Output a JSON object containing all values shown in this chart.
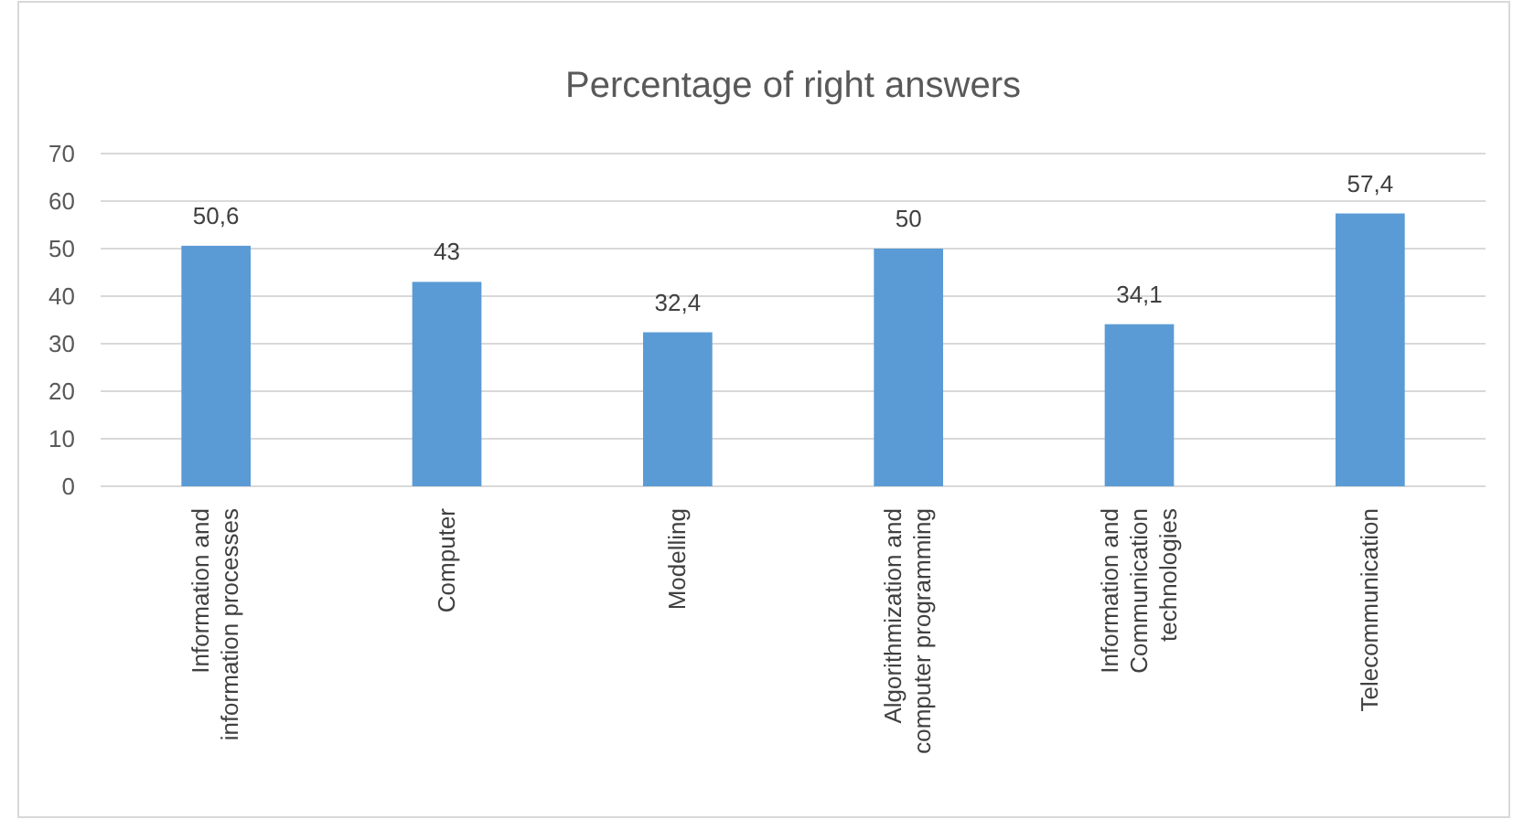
{
  "chart_data": {
    "type": "bar",
    "title": "Percentage of right answers",
    "categories": [
      "Information and information processes",
      "Computer",
      "Modelling",
      "Algorithmization and computer programming",
      "Information and Communication technologies",
      "Telecommunication"
    ],
    "values": [
      50.6,
      43,
      32.4,
      50,
      34.1,
      57.4
    ],
    "value_labels": [
      "50,6",
      "43",
      "32,4",
      "50",
      "34,1",
      "57,4"
    ],
    "color": "#5b9bd5",
    "ylim": [
      0,
      70
    ],
    "yticks": [
      0,
      10,
      20,
      30,
      40,
      50,
      60,
      70
    ],
    "grid": "y"
  }
}
